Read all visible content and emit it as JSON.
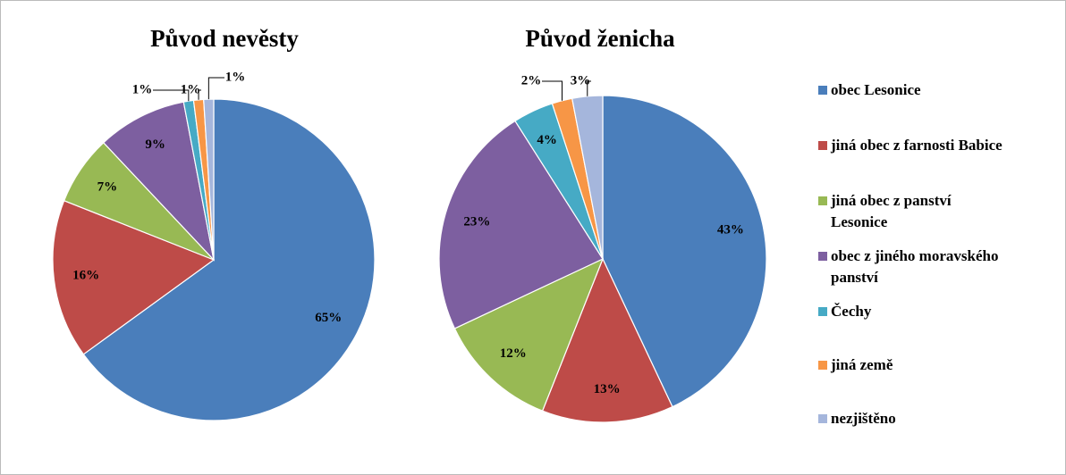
{
  "chart_data": [
    {
      "type": "pie",
      "title": "Původ nevěsty",
      "categories": [
        "obec Lesonice",
        "jiná obec z farnosti Babice",
        "jiná obec z panství Lesonice",
        "obec z jiného moravského panství",
        "Čechy",
        "jiná země",
        "nezjištěno"
      ],
      "colors": [
        "#4a7ebb",
        "#be4b48",
        "#98b954",
        "#7d5fa0",
        "#46aac5",
        "#f79646",
        "#a5b6dc"
      ],
      "values": [
        65,
        16,
        7,
        9,
        1,
        1,
        1
      ],
      "value_labels": [
        "65%",
        "16%",
        "7%",
        "9%",
        "1%",
        "1%",
        "1%"
      ],
      "legend": "right"
    },
    {
      "type": "pie",
      "title": "Původ ženicha",
      "values": [
        43,
        13,
        12,
        23,
        4,
        2,
        3
      ],
      "value_labels": [
        "43%",
        "13%",
        "12%",
        "23%",
        "4%",
        "2%",
        "3%"
      ]
    }
  ]
}
